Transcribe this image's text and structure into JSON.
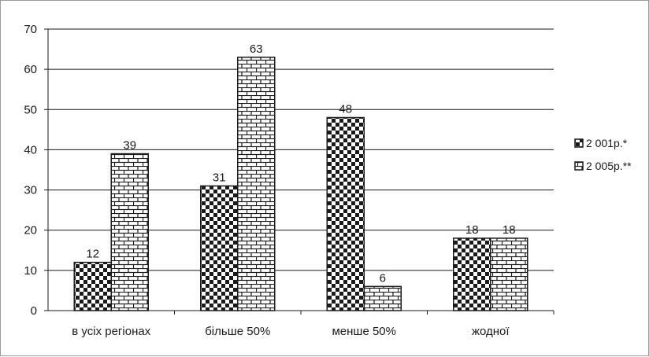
{
  "chart_data": {
    "type": "bar",
    "categories": [
      "в усіх регіонах",
      "більше 50%",
      "менше 50%",
      "жодної"
    ],
    "series": [
      {
        "name": "2 001р.*",
        "values": [
          12,
          31,
          48,
          18
        ],
        "pattern": "checkerboard"
      },
      {
        "name": "2 005р.**",
        "values": [
          39,
          63,
          6,
          18
        ],
        "pattern": "brick"
      }
    ],
    "ylim": [
      0,
      70
    ],
    "yticks": [
      0,
      10,
      20,
      30,
      40,
      50,
      60,
      70
    ],
    "ytick_labels": [
      "0",
      "10",
      "20",
      "30",
      "40",
      "50",
      "60",
      "70"
    ],
    "grid": true,
    "legend_position": "right",
    "title": "",
    "xlabel": "",
    "ylabel": ""
  },
  "colors": {
    "ink": "#1a1a1a",
    "fill": "#ffffff",
    "grid": "#1a1a1a"
  }
}
